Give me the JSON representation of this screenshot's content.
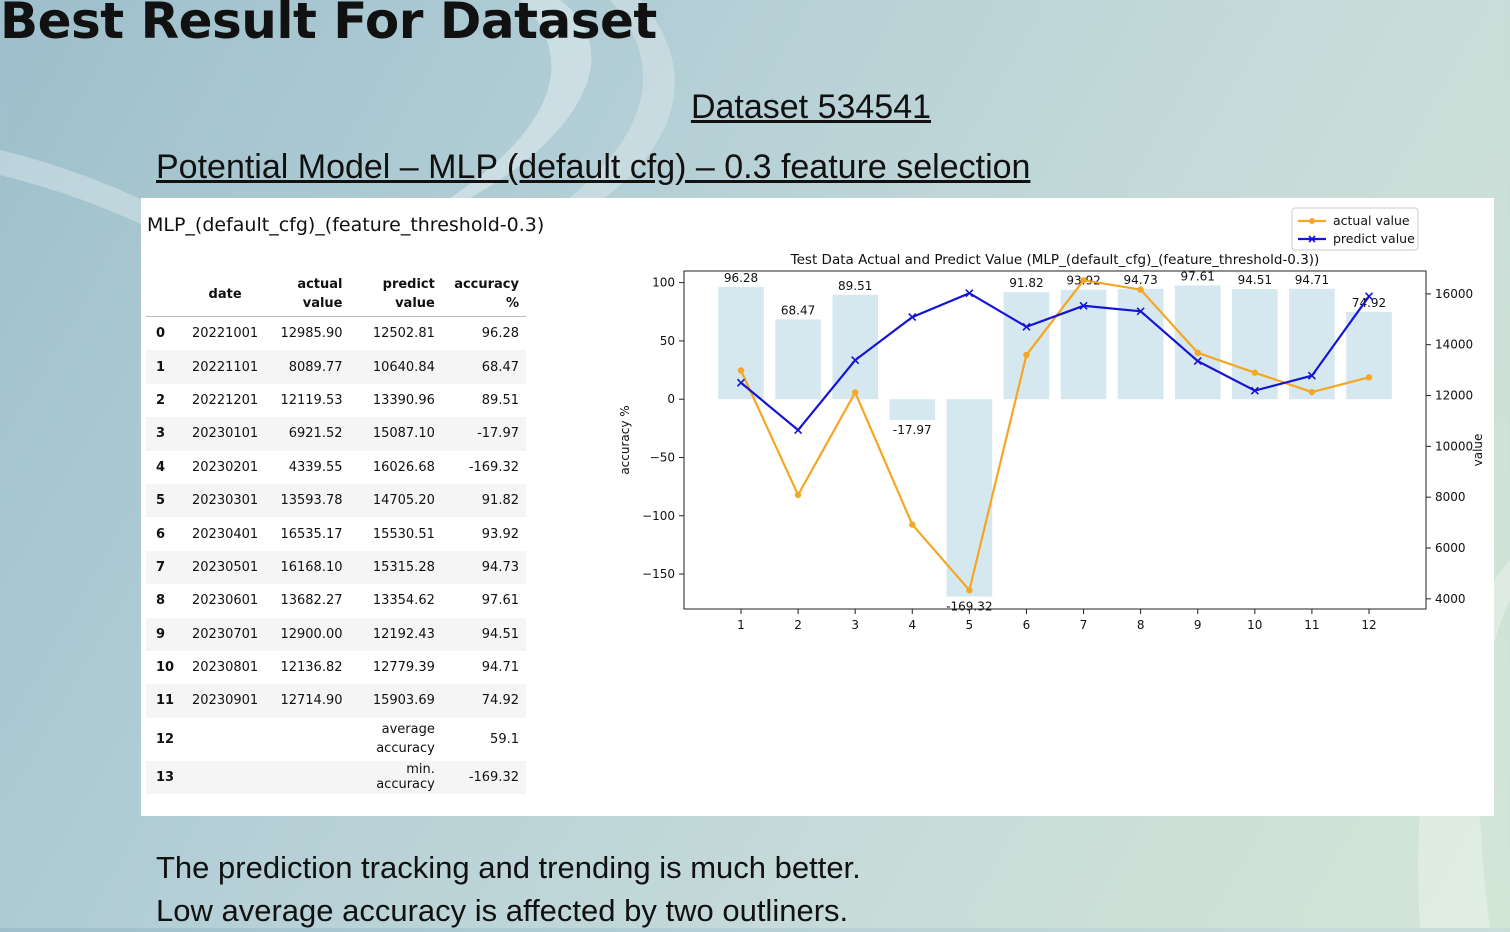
{
  "slide": {
    "title": "Best Result For Dataset",
    "subtitle1": "Dataset 534541",
    "subtitle2": "Potential Model – MLP (default cfg) – 0.3 feature selection",
    "footer_line1": "The prediction tracking and trending is much better.",
    "footer_line2": "Low average accuracy is affected by two outliners."
  },
  "table": {
    "title": "MLP_(default_cfg)_(feature_threshold-0.3)",
    "headers": [
      "",
      "date",
      "actual value",
      "predict value",
      "accuracy %"
    ],
    "rows": [
      {
        "idx": "0",
        "date": "20221001",
        "actual": "12985.90",
        "predict": "12502.81",
        "accuracy": "96.28"
      },
      {
        "idx": "1",
        "date": "20221101",
        "actual": "8089.77",
        "predict": "10640.84",
        "accuracy": "68.47"
      },
      {
        "idx": "2",
        "date": "20221201",
        "actual": "12119.53",
        "predict": "13390.96",
        "accuracy": "89.51"
      },
      {
        "idx": "3",
        "date": "20230101",
        "actual": "6921.52",
        "predict": "15087.10",
        "accuracy": "-17.97"
      },
      {
        "idx": "4",
        "date": "20230201",
        "actual": "4339.55",
        "predict": "16026.68",
        "accuracy": "-169.32"
      },
      {
        "idx": "5",
        "date": "20230301",
        "actual": "13593.78",
        "predict": "14705.20",
        "accuracy": "91.82"
      },
      {
        "idx": "6",
        "date": "20230401",
        "actual": "16535.17",
        "predict": "15530.51",
        "accuracy": "93.92"
      },
      {
        "idx": "7",
        "date": "20230501",
        "actual": "16168.10",
        "predict": "15315.28",
        "accuracy": "94.73"
      },
      {
        "idx": "8",
        "date": "20230601",
        "actual": "13682.27",
        "predict": "13354.62",
        "accuracy": "97.61"
      },
      {
        "idx": "9",
        "date": "20230701",
        "actual": "12900.00",
        "predict": "12192.43",
        "accuracy": "94.51"
      },
      {
        "idx": "10",
        "date": "20230801",
        "actual": "12136.82",
        "predict": "12779.39",
        "accuracy": "94.71"
      },
      {
        "idx": "11",
        "date": "20230901",
        "actual": "12714.90",
        "predict": "15903.69",
        "accuracy": "74.92"
      },
      {
        "idx": "12",
        "date": "",
        "actual": "",
        "predict": "average accuracy",
        "accuracy": "59.1"
      },
      {
        "idx": "13",
        "date": "",
        "actual": "",
        "predict": "min. accuracy",
        "accuracy": "-169.32"
      }
    ]
  },
  "chart_data": {
    "type": "bar+line",
    "title": "Test Data Actual and Predict Value (MLP_(default_cfg)_(feature_threshold-0.3))",
    "xlabel": "",
    "ylabel_left": "accuracy %",
    "ylabel_right": "value",
    "categories": [
      1,
      2,
      3,
      4,
      5,
      6,
      7,
      8,
      9,
      10,
      11,
      12
    ],
    "ylim_left": [
      -180,
      110
    ],
    "ylim_right": [
      3600,
      16900
    ],
    "yticks_left": [
      100,
      50,
      0,
      -50,
      -100,
      -150
    ],
    "yticks_right": [
      16000,
      14000,
      12000,
      10000,
      8000,
      6000,
      4000
    ],
    "bars": {
      "name": "accuracy %",
      "color": "#d6e8ef",
      "values": [
        96.28,
        68.47,
        89.51,
        -17.97,
        -169.32,
        91.82,
        93.92,
        94.73,
        97.61,
        94.51,
        94.71,
        74.92
      ]
    },
    "series": [
      {
        "name": "actual value",
        "color": "#f5a623",
        "marker": "o",
        "values": [
          12985.9,
          8089.77,
          12119.53,
          6921.52,
          4339.55,
          13593.78,
          16535.17,
          16168.1,
          13682.27,
          12900.0,
          12136.82,
          12714.9
        ]
      },
      {
        "name": "predict value",
        "color": "#1515d6",
        "marker": "x",
        "values": [
          12502.81,
          10640.84,
          13390.96,
          15087.1,
          16026.68,
          14705.2,
          15530.51,
          15315.28,
          13354.62,
          12192.43,
          12779.39,
          15903.69
        ]
      }
    ],
    "legend": "top-right",
    "grid": false
  }
}
